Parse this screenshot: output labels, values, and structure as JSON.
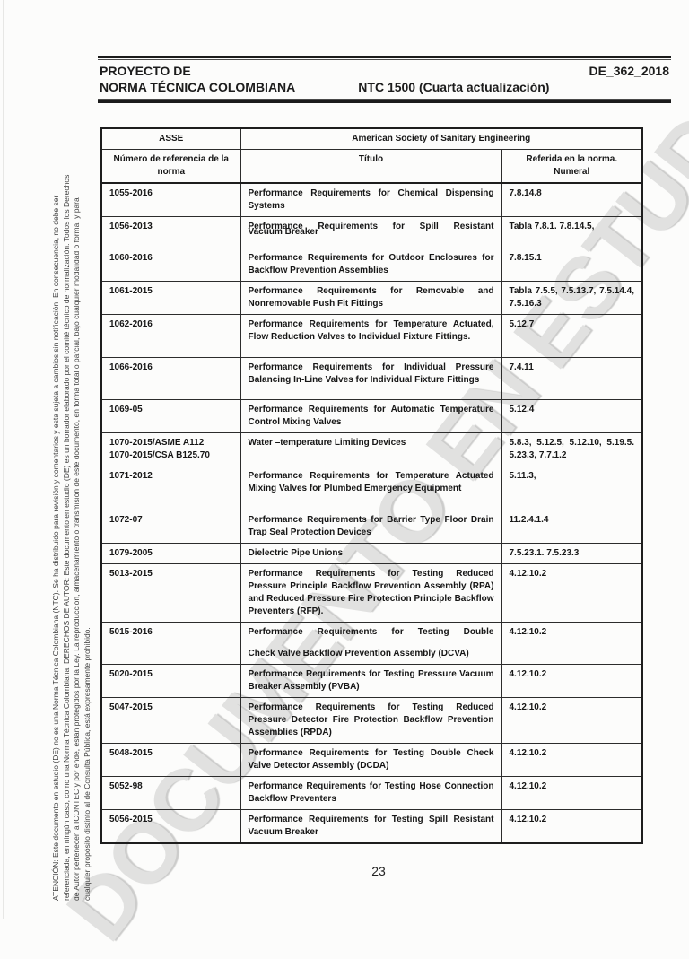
{
  "page": {
    "header": {
      "project_line1": "PROYECTO DE",
      "doc_code": "DE_362_2018",
      "project_line2": "NORMA TÉCNICA COLOMBIANA",
      "standard_ref": "NTC 1500 (Cuarta actualización)"
    },
    "watermark": "DOCUMENTO EN ESTUDIO",
    "page_number": "23",
    "side_note_lines": [
      "ATENCIÓN: Este documento en estudio (DE) no es una Norma Técnica Colombiana (NTC). Se ha distribuido para revisión y comentarios y esta sujeta a cambios sin notificación. En consecuencia, no debe ser",
      "referenciada, en ningún caso, como una Norma Técnica Colombiana. DERECHOS DE AUTOR: Este documento en estudio (DE) es un borrador elaborado por el comité técnico de normalización. Todos los Derechos",
      "de Autor pertenecen a ICONTEC y por ende, están protegidos por la Ley. La reproducción, almacenamiento o transmisión de este documento, en forma total o parcial, bajo cualquier modalidad o forma, y para",
      "cualquier propósito distinto al de Consulta Pública, está expresamente prohibido."
    ]
  },
  "colors": {
    "ink": "#1c1c1c",
    "watermark_gray": "#e1e1e0",
    "side_text_gray": "#3f3f3f"
  },
  "table": {
    "org_abbr": "ASSE",
    "org_name": "American Society of Sanitary Engineering",
    "columns": {
      "ref": "Número de referencia de la norma",
      "title": "Título",
      "numeral": "Referida en la norma. Numeral"
    },
    "rows": [
      {
        "ref": [
          "1055-2016"
        ],
        "title": [
          "Performance Requirements for Chemical Dispensing Systems"
        ],
        "numeral": "7.8.14.8",
        "artifact": ""
      },
      {
        "ref": [
          "1056-2013"
        ],
        "title": [
          "Performance Requirements for Spill Resistant",
          "Vacuum Breaker"
        ],
        "numeral": "Tabla 7.8.1. 7.8.14.5,",
        "artifact": "overlap"
      },
      {
        "ref": [
          "1060-2016"
        ],
        "title": [
          "Performance Requirements for Outdoor Enclosures for Backflow Prevention Assemblies"
        ],
        "numeral": "7.8.15.1",
        "artifact": ""
      },
      {
        "ref": [
          "1061-2015"
        ],
        "title": [
          "Performance Requirements for Removable and Nonremovable Push Fit Fittings"
        ],
        "numeral": "Tabla 7.5.5, 7.5.13.7, 7.5.14.4, 7.5.16.3",
        "artifact": ""
      },
      {
        "ref": [
          "1062-2016"
        ],
        "title": [
          "Performance Requirements for Temperature Actuated, Flow Reduction Valves to Individual Fixture Fittings."
        ],
        "numeral": "5.12.7",
        "artifact": ""
      },
      {
        "ref": [
          "1066-2016"
        ],
        "title": [
          "Performance Requirements for Individual Pressure Balancing In-Line Valves for Individual Fixture Fittings"
        ],
        "numeral": "7.4.11",
        "artifact": ""
      },
      {
        "ref": [
          "1069-05"
        ],
        "title": [
          "Performance Requirements for Automatic Temperature Control Mixing Valves"
        ],
        "numeral": "5.12.4",
        "artifact": ""
      },
      {
        "ref": [
          "1070-2015/ASME A112",
          "1070-2015/CSA B125.70"
        ],
        "title": [
          "Water –temperature Limiting Devices"
        ],
        "numeral": "5.8.3, 5.12.5, 5.12.10, 5.19.5. 5.23.3, 7.7.1.2",
        "artifact": ""
      },
      {
        "ref": [
          "1071-2012"
        ],
        "title": [
          "Performance Requirements for Temperature Actuated Mixing Valves for Plumbed Emergency Equipment"
        ],
        "numeral": "5.11.3,",
        "artifact": ""
      },
      {
        "ref": [
          "1072-07"
        ],
        "title": [
          "Performance Requirements for Barrier Type Floor Drain Trap Seal Protection Devices"
        ],
        "numeral": "11.2.4.1.4",
        "artifact": ""
      },
      {
        "ref": [
          "1079-2005"
        ],
        "title": [
          "Dielectric Pipe Unions"
        ],
        "numeral": "7.5.23.1. 7.5.23.3",
        "artifact": ""
      },
      {
        "ref": [
          "5013-2015"
        ],
        "title": [
          "Performance Requirements for Testing Reduced Pressure Principle Backflow Prevention Assembly (RPA) and Reduced Pressure Fire Protection Principle Backflow Preventers (RFP)."
        ],
        "numeral": "4.12.10.2",
        "artifact": ""
      },
      {
        "ref": [
          "5015-2016"
        ],
        "title": [
          "Performance Requirements for Testing Double",
          "Check Valve Backflow Prevention Assembly (DCVA)"
        ],
        "numeral": "4.12.10.2",
        "artifact": "gap"
      },
      {
        "ref": [
          "5020-2015"
        ],
        "title": [
          "Performance Requirements for Testing Pressure Vacuum Breaker Assembly (PVBA)"
        ],
        "numeral": "4.12.10.2",
        "artifact": ""
      },
      {
        "ref": [
          "5047-2015"
        ],
        "title": [
          "Performance Requirements for Testing Reduced Pressure Detector Fire Protection Backflow Prevention Assemblies (RPDA)"
        ],
        "numeral": "4.12.10.2",
        "artifact": ""
      },
      {
        "ref": [
          "5048-2015"
        ],
        "title": [
          "Performance Requirements for Testing Double Check Valve Detector Assembly (DCDA)"
        ],
        "numeral": "4.12.10.2",
        "artifact": ""
      },
      {
        "ref": [
          "5052-98"
        ],
        "title": [
          "Performance Requirements for Testing Hose Connection Backflow Preventers"
        ],
        "numeral": "4.12.10.2",
        "artifact": ""
      },
      {
        "ref": [
          "5056-2015"
        ],
        "title": [
          "Performance Requirements for Testing Spill Resistant Vacuum Breaker"
        ],
        "numeral": "4.12.10.2",
        "artifact": ""
      }
    ]
  }
}
